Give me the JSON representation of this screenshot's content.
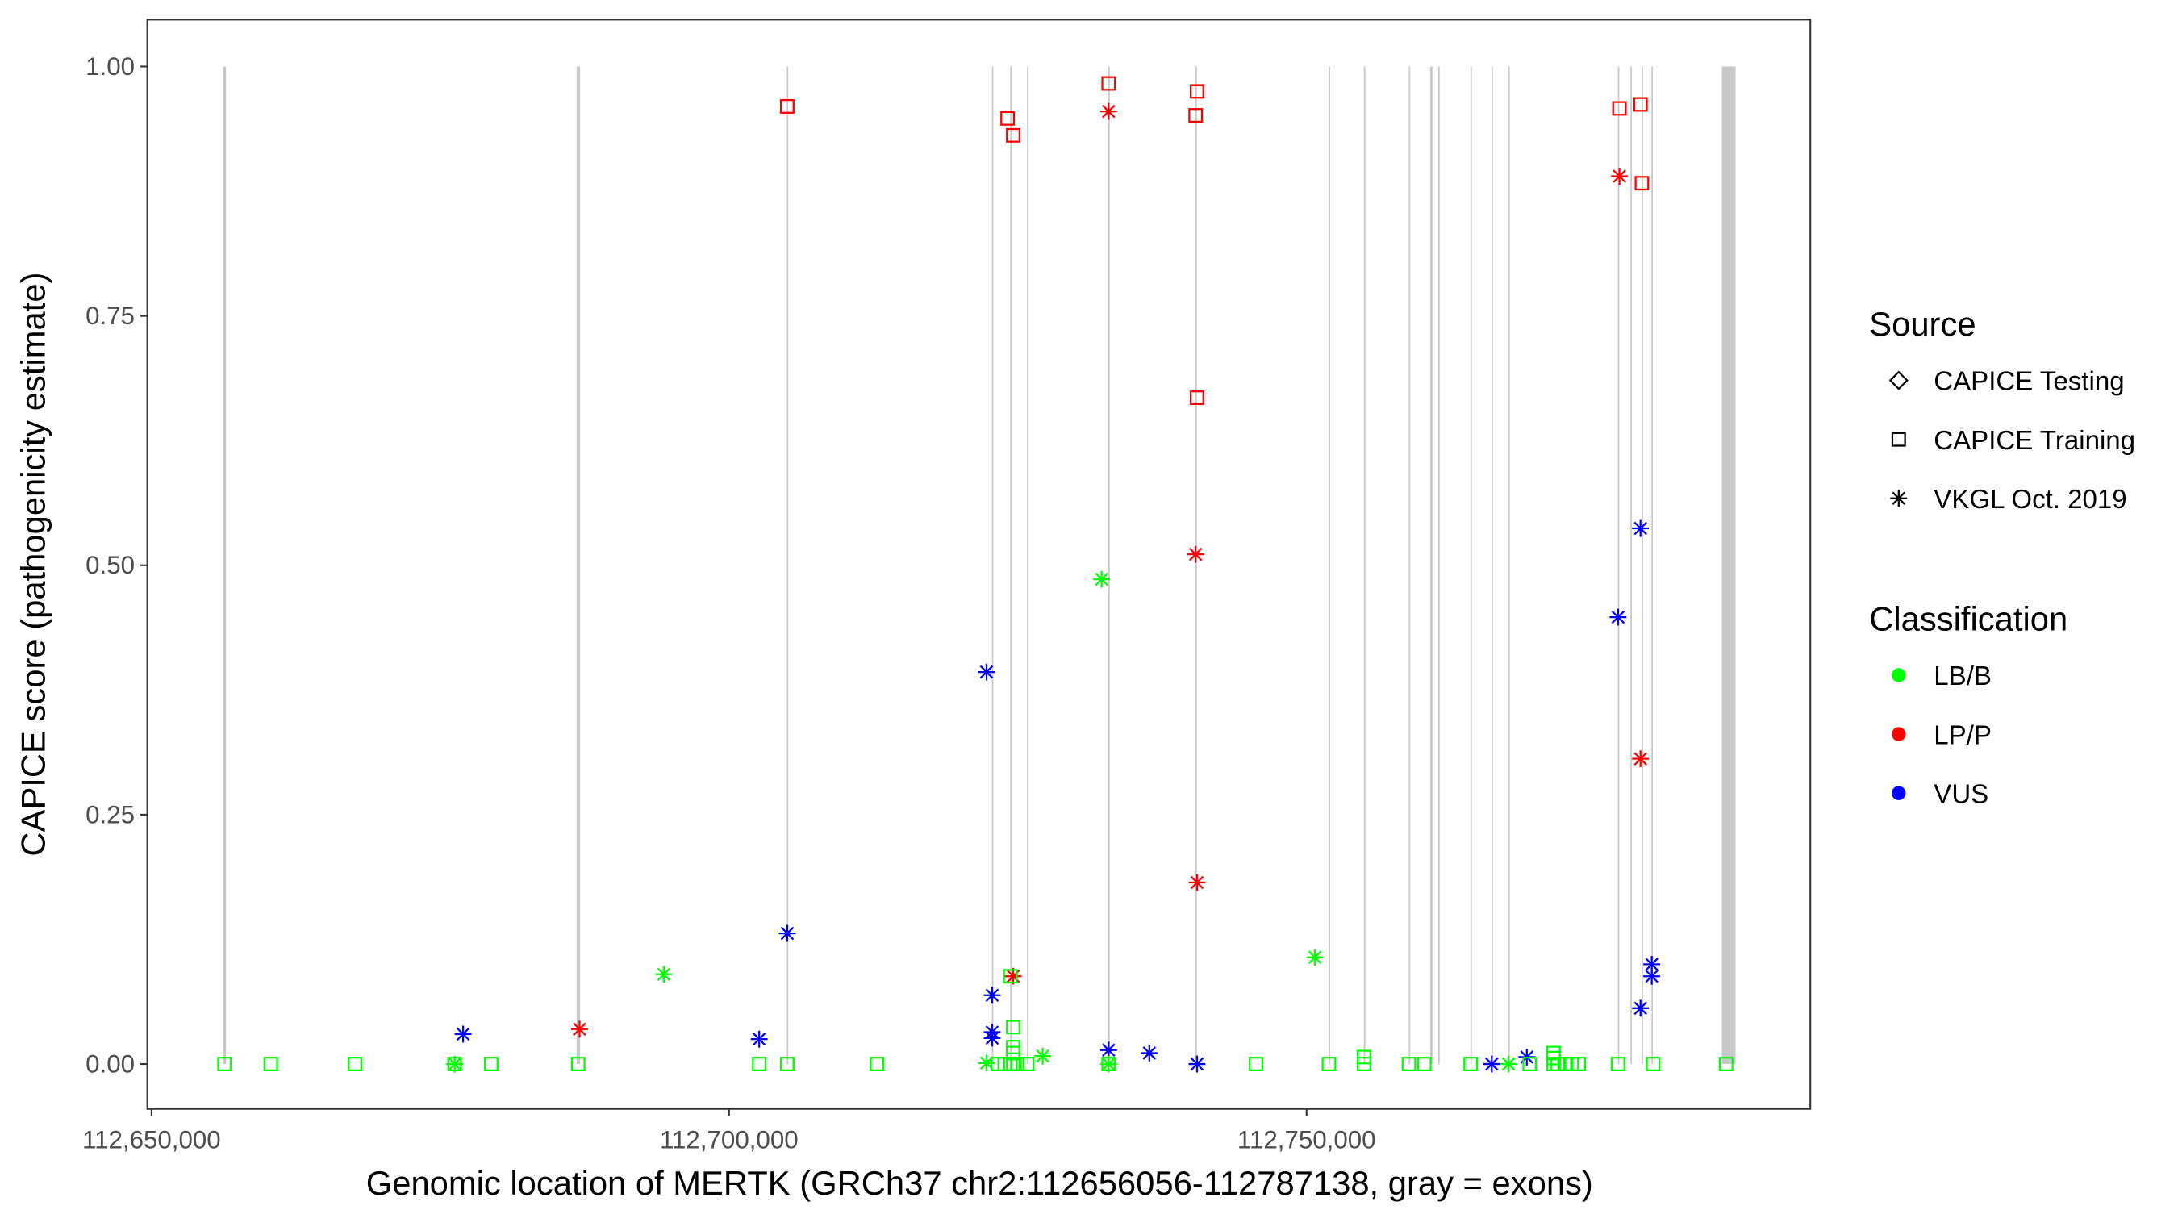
{
  "chart_data": {
    "type": "scatter",
    "xlabel": "Genomic location of MERTK (GRCh37 chr2:112656056-112787138, gray = exons)",
    "ylabel": "CAPICE score (pathogenicity estimate)",
    "xlim": [
      112649636,
      112793613
    ],
    "ylim": [
      -0.045,
      1.047
    ],
    "x_ticks": [
      112650000,
      112700000,
      112750000
    ],
    "x_tick_labels": [
      "112,650,000",
      "112,700,000",
      "112,750,000"
    ],
    "y_ticks": [
      0,
      0.25,
      0.5,
      0.75,
      1
    ],
    "y_tick_labels": [
      "0.00",
      "0.25",
      "0.50",
      "0.75",
      "1.00"
    ],
    "grid": false,
    "legend_placement": "right",
    "legend": {
      "source_title": "Source",
      "sources": [
        {
          "label": "CAPICE Testing",
          "shape": "diamond"
        },
        {
          "label": "CAPICE Training",
          "shape": "square"
        },
        {
          "label": "VKGL Oct. 2019",
          "shape": "asterisk"
        }
      ],
      "class_title": "Classification",
      "classes": [
        {
          "label": "LB/B",
          "color": "#00ff00"
        },
        {
          "label": "LP/P",
          "color": "#ff0000"
        },
        {
          "label": "VUS",
          "color": "#0000ff"
        }
      ]
    },
    "exon_color": "#c8c8c8",
    "exons": [
      [
        112656200,
        112656450
      ],
      [
        112686800,
        112687100
      ],
      [
        112705000,
        112705080
      ],
      [
        112722760,
        112722800
      ],
      [
        112724340,
        112724380
      ],
      [
        112725800,
        112725840
      ],
      [
        112732840,
        112732890
      ],
      [
        112740380,
        112740420
      ],
      [
        112751920,
        112751960
      ],
      [
        112754960,
        112755000
      ],
      [
        112758850,
        112758890
      ],
      [
        112760700,
        112760900
      ],
      [
        112761400,
        112761440
      ],
      [
        112764190,
        112764230
      ],
      [
        112766010,
        112766050
      ],
      [
        112767470,
        112767510
      ],
      [
        112776950,
        112776990
      ],
      [
        112778040,
        112778080
      ],
      [
        112779010,
        112779050
      ],
      [
        112779860,
        112779900
      ],
      [
        112785950,
        112787138
      ]
    ],
    "point_fields": [
      "position",
      "score",
      "source_index",
      "class_index"
    ],
    "points": [
      [
        112705040,
        0.96,
        1,
        1
      ],
      [
        112724115,
        0.948,
        1,
        1
      ],
      [
        112724601,
        0.931,
        1,
        1
      ],
      [
        112732863,
        0.983,
        1,
        1
      ],
      [
        112740518,
        0.975,
        1,
        1
      ],
      [
        112740396,
        0.951,
        1,
        1
      ],
      [
        112740518,
        0.668,
        1,
        1
      ],
      [
        112777089,
        0.958,
        1,
        1
      ],
      [
        112778912,
        0.962,
        1,
        1
      ],
      [
        112779033,
        0.883,
        1,
        1
      ],
      [
        112732863,
        0.955,
        2,
        1
      ],
      [
        112740396,
        0.511,
        2,
        1
      ],
      [
        112740518,
        0.182,
        2,
        1
      ],
      [
        112777089,
        0.89,
        2,
        1
      ],
      [
        112778912,
        0.306,
        2,
        1
      ],
      [
        112687058,
        0.035,
        2,
        1
      ],
      [
        112724601,
        0.088,
        2,
        1
      ],
      [
        112778912,
        0.537,
        2,
        2
      ],
      [
        112776968,
        0.448,
        2,
        2
      ],
      [
        112722293,
        0.393,
        2,
        2
      ],
      [
        112705040,
        0.131,
        2,
        2
      ],
      [
        112779884,
        0.1,
        2,
        2
      ],
      [
        112779884,
        0.088,
        2,
        2
      ],
      [
        112778912,
        0.056,
        2,
        2
      ],
      [
        112722779,
        0.069,
        2,
        2
      ],
      [
        112722779,
        0.032,
        2,
        2
      ],
      [
        112722779,
        0.026,
        2,
        2
      ],
      [
        112676973,
        0.03,
        2,
        2
      ],
      [
        112702610,
        0.025,
        2,
        2
      ],
      [
        112732863,
        0.014,
        2,
        2
      ],
      [
        112736387,
        0.011,
        2,
        2
      ],
      [
        112740518,
        0.0,
        2,
        2
      ],
      [
        112766033,
        0.0,
        2,
        2
      ],
      [
        112769070,
        0.007,
        2,
        2
      ],
      [
        112732256,
        0.486,
        2,
        0
      ],
      [
        112750724,
        0.107,
        2,
        0
      ],
      [
        112694348,
        0.09,
        2,
        0
      ],
      [
        112727153,
        0.008,
        2,
        0
      ],
      [
        112722293,
        0.001,
        2,
        0
      ],
      [
        112732863,
        0.0,
        2,
        0
      ],
      [
        112676244,
        0.0,
        2,
        0
      ],
      [
        112767491,
        0.0,
        2,
        0
      ],
      [
        112656318,
        0,
        1,
        0
      ],
      [
        112660328,
        0,
        1,
        0
      ],
      [
        112667618,
        0,
        1,
        0
      ],
      [
        112676244,
        0,
        1,
        0
      ],
      [
        112679403,
        0,
        1,
        0
      ],
      [
        112686936,
        0,
        1,
        0
      ],
      [
        112702610,
        0,
        1,
        0
      ],
      [
        112705040,
        0,
        1,
        0
      ],
      [
        112712816,
        0,
        1,
        0
      ],
      [
        112723265,
        0,
        1,
        0
      ],
      [
        112723872,
        0,
        1,
        0
      ],
      [
        112724358,
        0,
        1,
        0
      ],
      [
        112724601,
        0,
        1,
        0
      ],
      [
        112724966,
        0,
        1,
        0
      ],
      [
        112725816,
        0,
        1,
        0
      ],
      [
        112732863,
        0,
        1,
        0
      ],
      [
        112745621,
        0,
        1,
        0
      ],
      [
        112751939,
        0,
        1,
        0
      ],
      [
        112754976,
        0,
        1,
        0
      ],
      [
        112758864,
        0,
        1,
        0
      ],
      [
        112760201,
        0,
        1,
        0
      ],
      [
        112764210,
        0,
        1,
        0
      ],
      [
        112769313,
        0,
        1,
        0
      ],
      [
        112771379,
        0,
        1,
        0
      ],
      [
        112771743,
        0,
        1,
        0
      ],
      [
        112772351,
        0,
        1,
        0
      ],
      [
        112772958,
        0,
        1,
        0
      ],
      [
        112773566,
        0,
        1,
        0
      ],
      [
        112776968,
        0,
        1,
        0
      ],
      [
        112780005,
        0,
        1,
        0
      ],
      [
        112786323,
        0,
        1,
        0
      ],
      [
        112724601,
        0.037,
        1,
        0
      ],
      [
        112724601,
        0.017,
        1,
        0
      ],
      [
        112724601,
        0.011,
        1,
        0
      ],
      [
        112724358,
        0.088,
        1,
        0
      ],
      [
        112754976,
        0.007,
        1,
        0
      ],
      [
        112771379,
        0.011,
        1,
        0
      ],
      [
        112771379,
        0.006,
        1,
        0
      ]
    ]
  }
}
